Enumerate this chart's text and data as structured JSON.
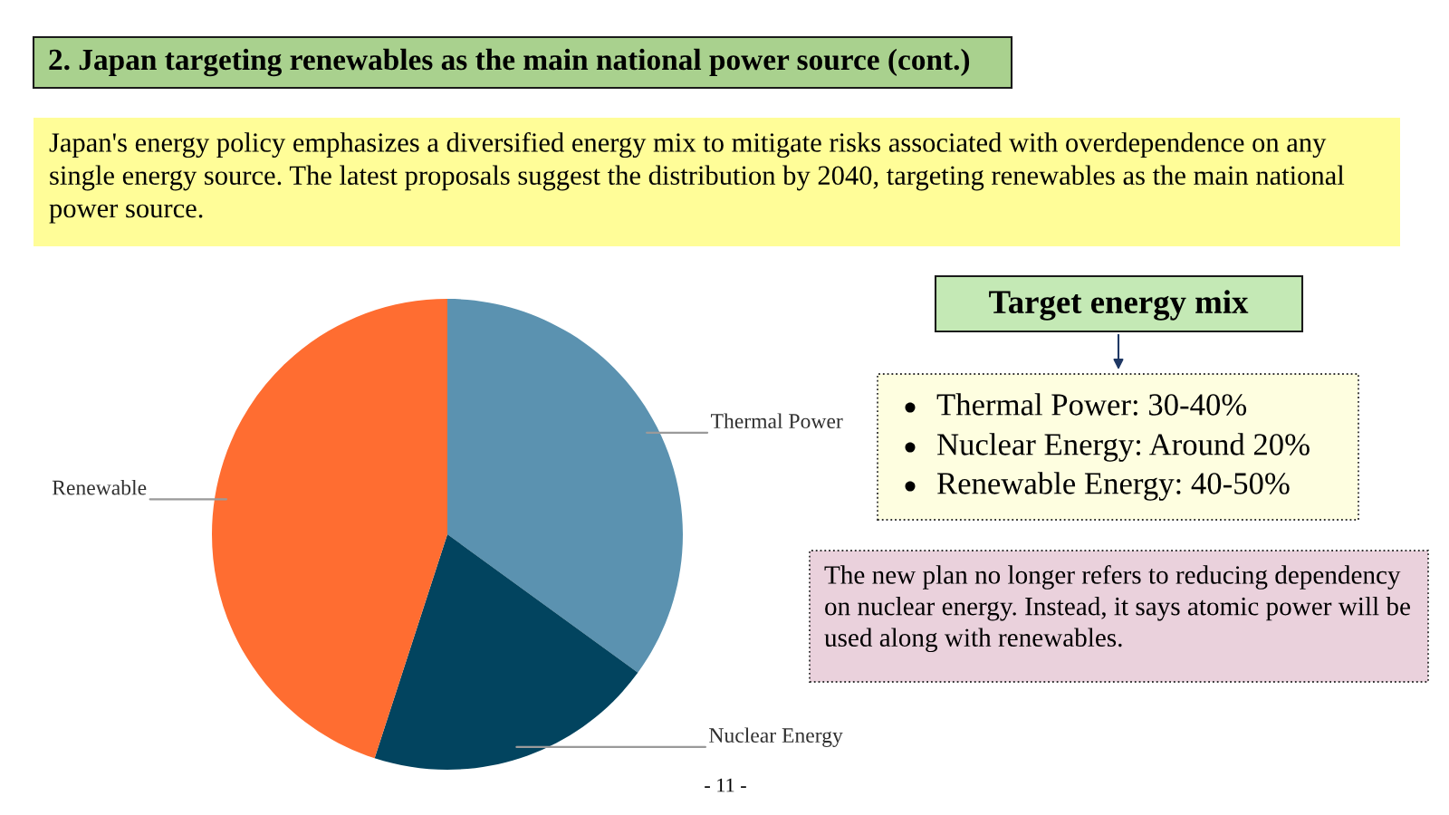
{
  "chart_data": {
    "type": "pie",
    "title": "2. Japan targeting renewables as the main national power source (cont.)",
    "categories": [
      "Thermal Power",
      "Nuclear Energy",
      "Renewable"
    ],
    "values": [
      35,
      20,
      45
    ],
    "colors": [
      "#5b92b0",
      "#02445f",
      "#ff6d31"
    ],
    "annotations": [
      "Japan's energy policy emphasizes a diversified energy mix to mitigate risks associated with overdependence on any single energy source. The latest proposals suggest the distribution by 2040, targeting renewables as the main national power source.",
      "Target energy mix",
      "Thermal Power: 30-40%",
      "Nuclear Energy: Around 20%",
      "Renewable Energy: 40-50%",
      "The new plan no longer refers to reducing dependency on nuclear energy. Instead, it says atomic power will be used along with renewables.",
      "- 11 -"
    ]
  }
}
